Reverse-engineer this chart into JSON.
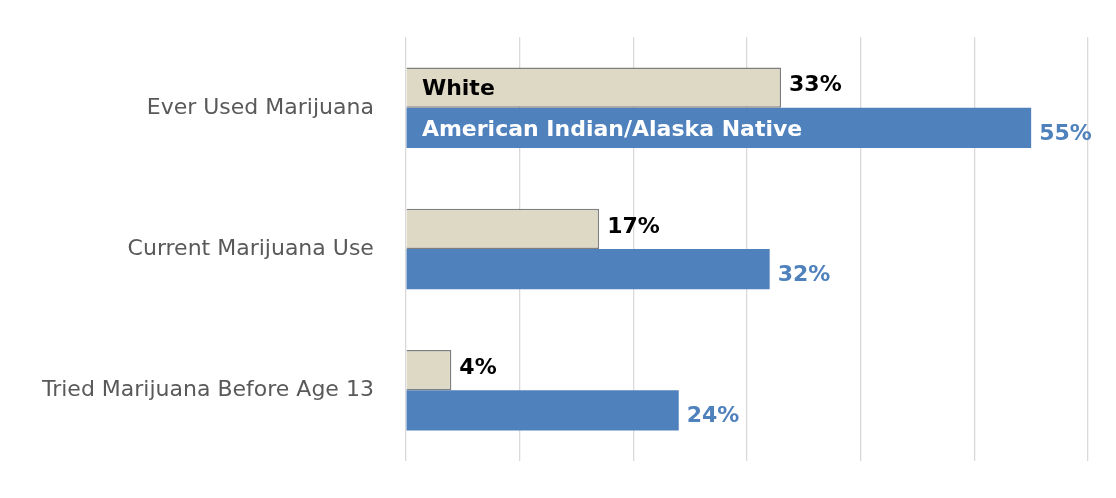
{
  "chart_data": {
    "type": "bar",
    "orientation": "horizontal",
    "categories": [
      "Ever Used Marijuana",
      "Current Marijuana Use",
      "Tried Marijuana Before Age 13"
    ],
    "series": [
      {
        "name": "White",
        "color": "#ddd9c4",
        "values": [
          33,
          17,
          4
        ],
        "value_labels": [
          "33%",
          "17%",
          "4%"
        ]
      },
      {
        "name": "American Indian/Alaska Native",
        "color": "#4f81bd",
        "values": [
          55,
          32,
          24
        ],
        "value_labels": [
          "55%",
          "32%",
          "24%"
        ]
      }
    ],
    "xlim": [
      0,
      60
    ],
    "xticks": [
      {
        "value": 0,
        "label": null
      },
      {
        "value": 10,
        "label": null
      },
      {
        "value": 20,
        "label": null
      },
      {
        "value": 30,
        "label": null
      },
      {
        "value": 40,
        "label": null
      },
      {
        "value": 50,
        "label": null
      },
      {
        "value": 60,
        "label": null
      }
    ],
    "tick_labels": "y",
    "grid": "x",
    "legend": false
  }
}
